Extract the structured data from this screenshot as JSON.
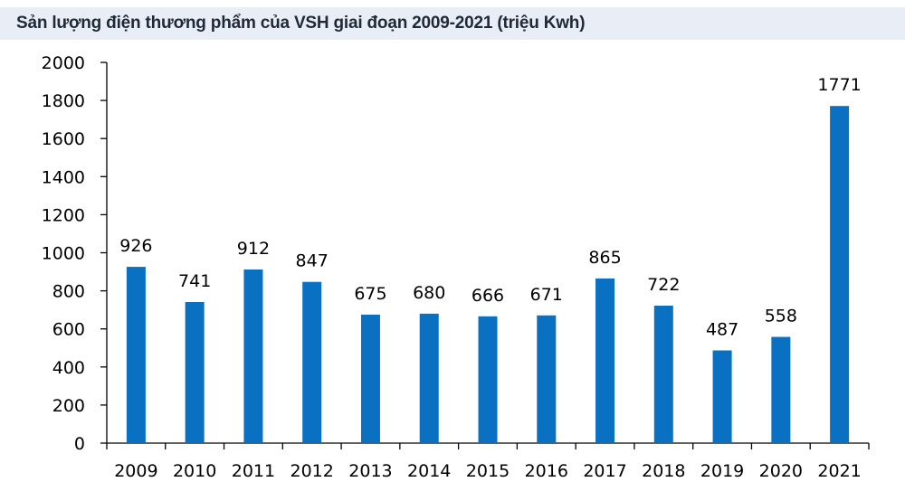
{
  "chart_data": {
    "type": "bar",
    "title": "Sản lượng điện thương phẩm của VSH giai đoạn 2009-2021 (triệu Kwh)",
    "categories": [
      "2009",
      "2010",
      "2011",
      "2012",
      "2013",
      "2014",
      "2015",
      "2016",
      "2017",
      "2018",
      "2019",
      "2020",
      "2021"
    ],
    "values": [
      926,
      741,
      912,
      847,
      675,
      680,
      666,
      671,
      865,
      722,
      487,
      558,
      1771
    ],
    "ylim": [
      0,
      2000
    ],
    "yticks": [
      0,
      200,
      400,
      600,
      800,
      1000,
      1200,
      1400,
      1600,
      1800,
      2000
    ],
    "xlabel": "",
    "ylabel": "",
    "grid": false,
    "legend": "none",
    "colors": {
      "bar": "#0a70c2",
      "axis": "#000000",
      "title_bg": "#e9eef6"
    }
  }
}
